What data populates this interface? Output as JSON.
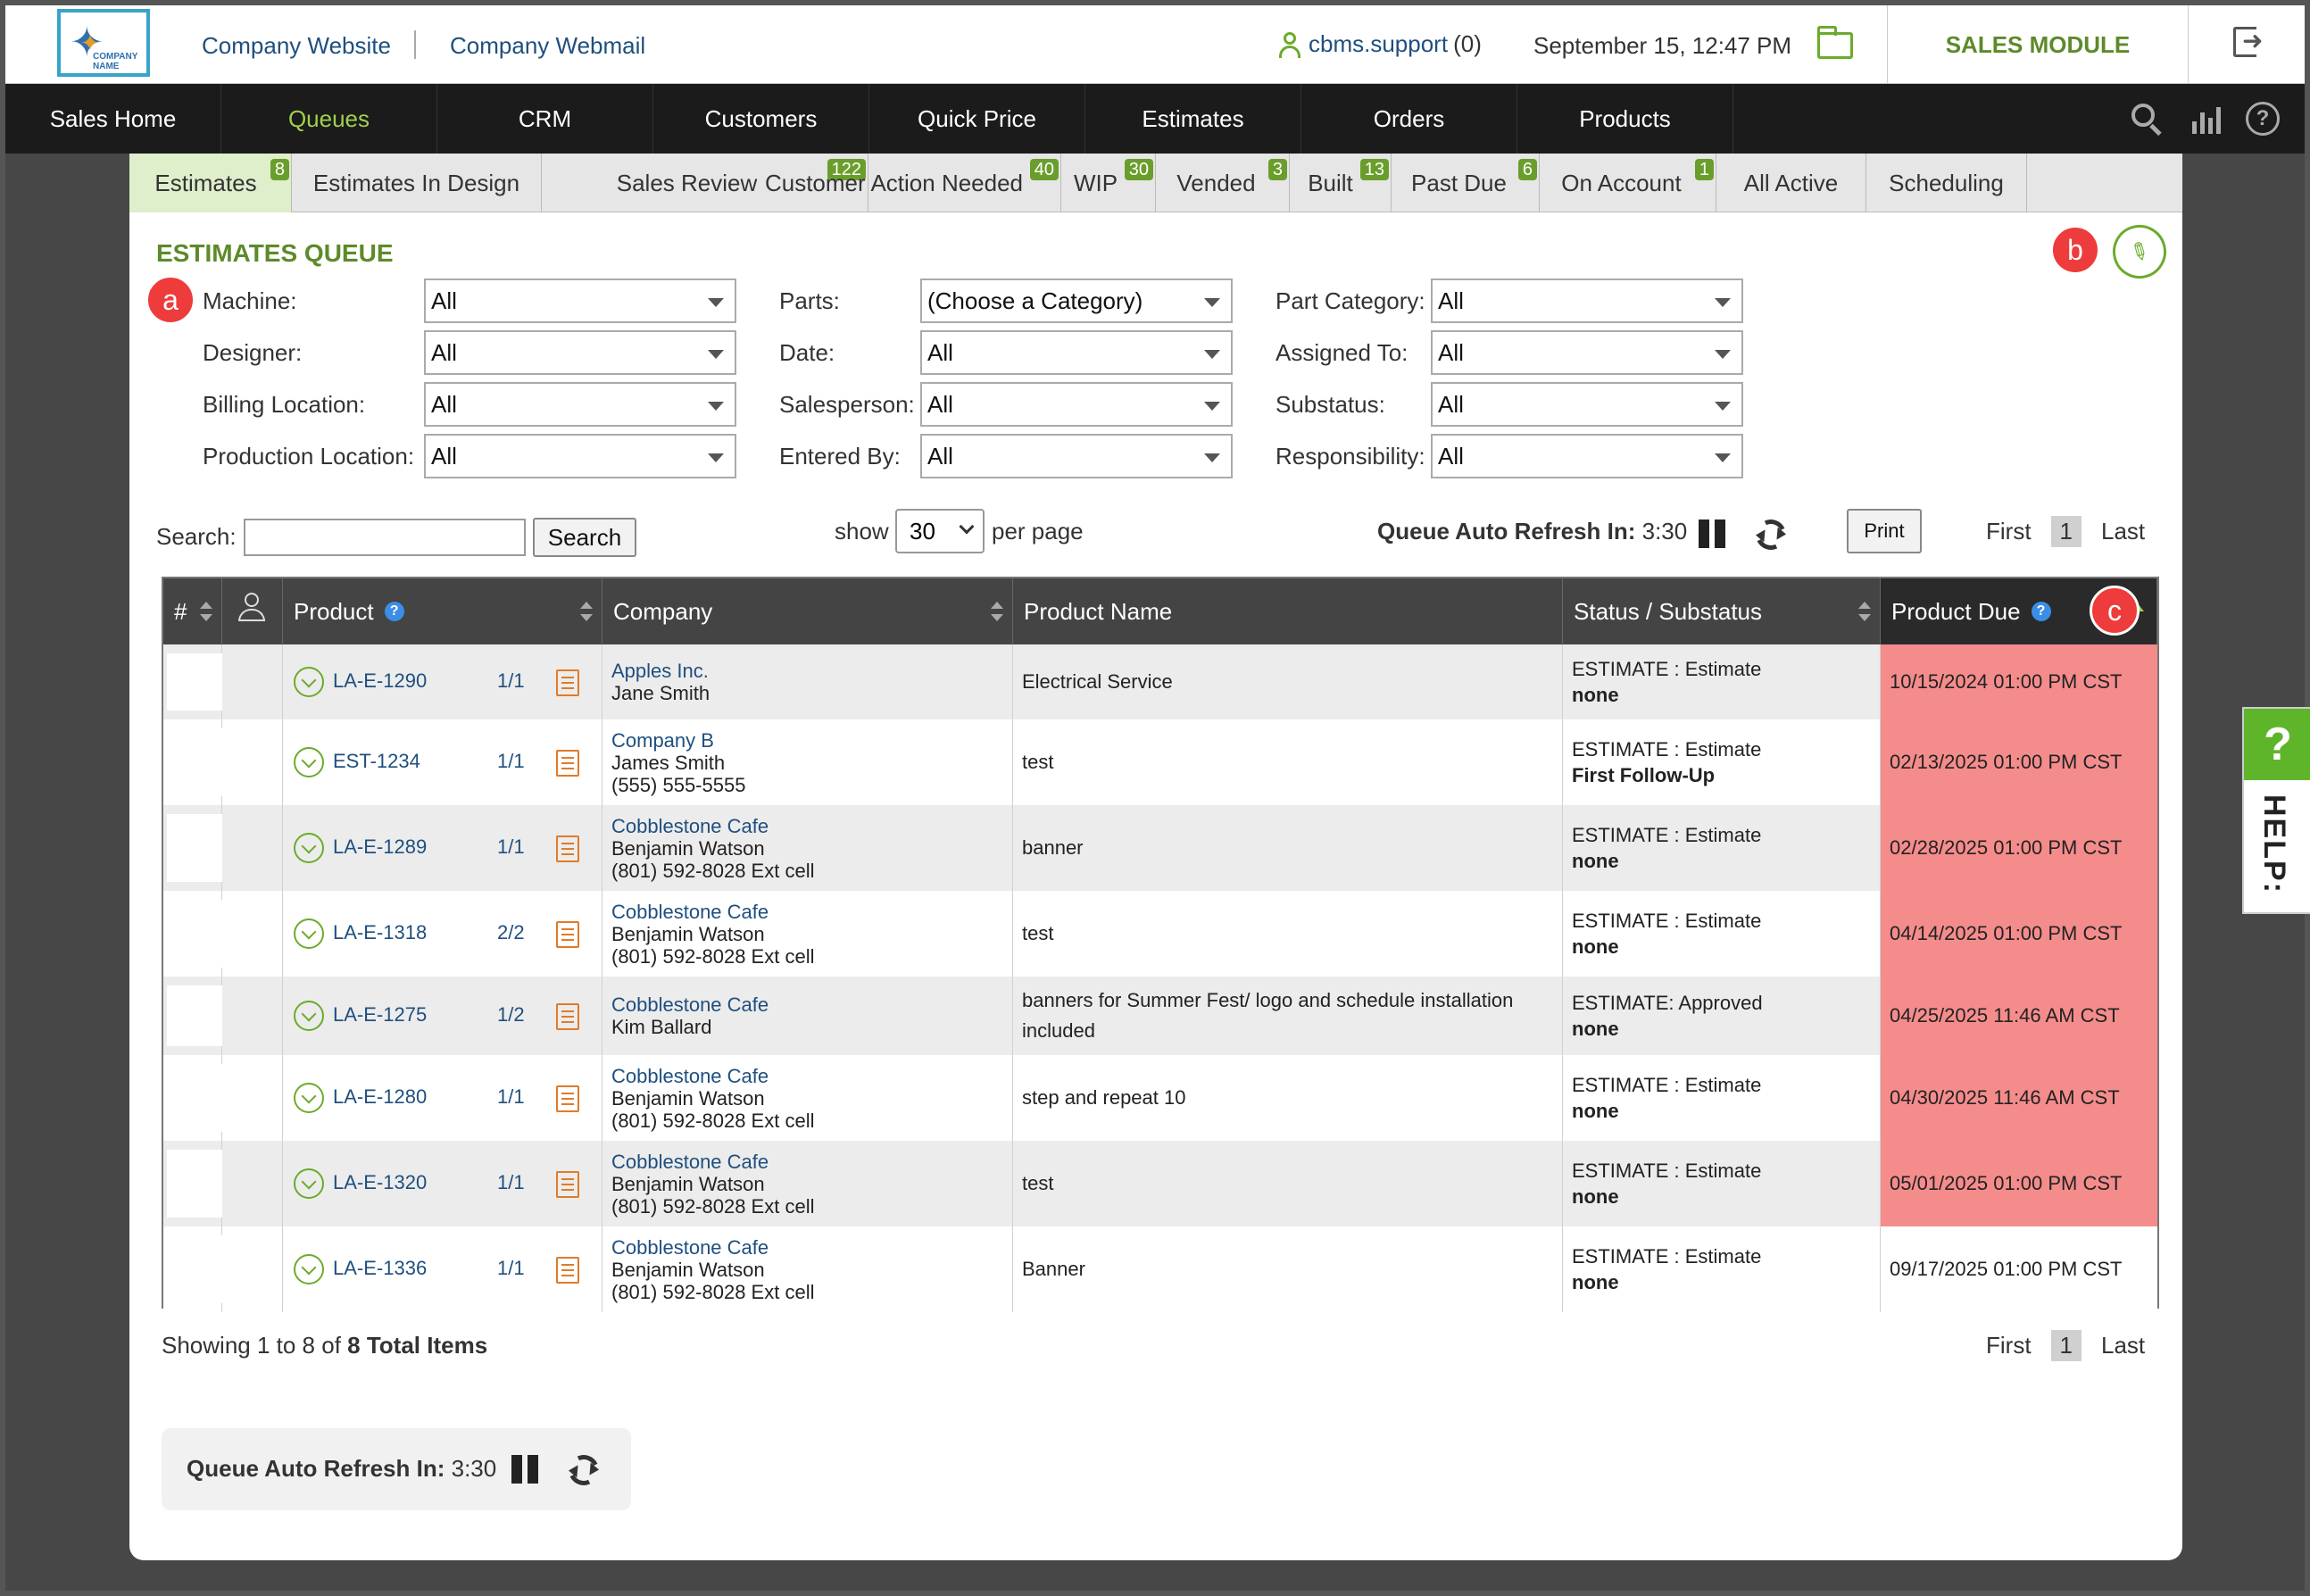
{
  "header": {
    "links": [
      "Company Website",
      "Company Webmail"
    ],
    "logo_text": "COMPANY NAME",
    "user": "cbms.support",
    "user_count": "(0)",
    "datetime": "September 15, 12:47 PM",
    "module": "SALES MODULE"
  },
  "nav": {
    "items": [
      "Sales Home",
      "Queues",
      "CRM",
      "Customers",
      "Quick Price",
      "Estimates",
      "Orders",
      "Products"
    ],
    "active": "Queues",
    "active_color": "#9fd04d"
  },
  "tabs": [
    {
      "label": "Estimates",
      "badge": "8"
    },
    {
      "label": "Estimates In Design",
      "badge": ""
    },
    {
      "label": "Sales Review",
      "badge": "122"
    },
    {
      "label": "Customer Action Needed",
      "badge": "40"
    },
    {
      "label": "WIP",
      "badge": "30"
    },
    {
      "label": "Vended",
      "badge": "3"
    },
    {
      "label": "Built",
      "badge": "13"
    },
    {
      "label": "Past Due",
      "badge": "6"
    },
    {
      "label": "On Account",
      "badge": "1"
    },
    {
      "label": "All Active",
      "badge": ""
    },
    {
      "label": "Scheduling",
      "badge": ""
    }
  ],
  "queue_title": "ESTIMATES QUEUE",
  "markers": {
    "a": "a",
    "b": "b",
    "c": "c"
  },
  "filters": {
    "machine_label": "Machine:",
    "machine_value": "All",
    "designer_label": "Designer:",
    "designer_value": "All",
    "billing_label": "Billing Location:",
    "billing_value": "All",
    "production_label": "Production Location:",
    "production_value": "All",
    "parts_label": "Parts:",
    "parts_value": "(Choose a Category)",
    "date_label": "Date:",
    "date_value": "All",
    "salesperson_label": "Salesperson:",
    "salesperson_value": "All",
    "entered_label": "Entered By:",
    "entered_value": "All",
    "partcat_label": "Part Category:",
    "partcat_value": "All",
    "assigned_label": "Assigned To:",
    "assigned_value": "All",
    "substatus_label": "Substatus:",
    "substatus_value": "All",
    "responsibility_label": "Responsibility:",
    "responsibility_value": "All"
  },
  "search": {
    "label": "Search:",
    "value": "",
    "button": "Search"
  },
  "paging": {
    "show": "show",
    "per_page_value": "30",
    "per_page": "per page",
    "first": "First",
    "current": "1",
    "last": "Last"
  },
  "refresh": {
    "label": "Queue Auto Refresh In:",
    "time": "3:30"
  },
  "print_label": "Print",
  "table": {
    "headers": {
      "num": "#",
      "product": "Product",
      "company": "Company",
      "product_name": "Product Name",
      "status": "Status / Substatus",
      "due": "Product Due"
    },
    "overdue_color": "#f58c8c",
    "rows": [
      {
        "id": "LA-E-1290",
        "frac": "1/1",
        "company": "Apples Inc.",
        "contact": "Jane Smith",
        "phone": "",
        "product_name": "Electrical Service",
        "status": "ESTIMATE : Estimate",
        "substatus": "none",
        "due": "10/15/2024 01:00 PM CST",
        "overdue": true
      },
      {
        "id": "EST-1234",
        "frac": "1/1",
        "company": "Company B",
        "contact": "James Smith",
        "phone": "(555) 555-5555",
        "product_name": "test",
        "status": "ESTIMATE : Estimate",
        "substatus": "First Follow-Up",
        "due": "02/13/2025 01:00 PM CST",
        "overdue": true
      },
      {
        "id": "LA-E-1289",
        "frac": "1/1",
        "company": "Cobblestone Cafe",
        "contact": "Benjamin Watson",
        "phone": "(801) 592-8028 Ext cell",
        "product_name": "banner",
        "status": "ESTIMATE : Estimate",
        "substatus": "none",
        "due": "02/28/2025 01:00 PM CST",
        "overdue": true
      },
      {
        "id": "LA-E-1318",
        "frac": "2/2",
        "company": "Cobblestone Cafe",
        "contact": "Benjamin Watson",
        "phone": "(801) 592-8028 Ext cell",
        "product_name": "test",
        "status": "ESTIMATE : Estimate",
        "substatus": "none",
        "due": "04/14/2025 01:00 PM CST",
        "overdue": true
      },
      {
        "id": "LA-E-1275",
        "frac": "1/2",
        "company": "Cobblestone Cafe",
        "contact": "Kim Ballard",
        "phone": "",
        "product_name": "banners for Summer Fest/ logo and schedule installation included",
        "status": "ESTIMATE: Approved",
        "substatus": "none",
        "due": "04/25/2025 11:46 AM CST",
        "overdue": true
      },
      {
        "id": "LA-E-1280",
        "frac": "1/1",
        "company": "Cobblestone Cafe",
        "contact": "Benjamin Watson",
        "phone": "(801) 592-8028 Ext cell",
        "product_name": "step and repeat 10",
        "status": "ESTIMATE : Estimate",
        "substatus": "none",
        "due": "04/30/2025 11:46 AM CST",
        "overdue": true
      },
      {
        "id": "LA-E-1320",
        "frac": "1/1",
        "company": "Cobblestone Cafe",
        "contact": "Benjamin Watson",
        "phone": "(801) 592-8028 Ext cell",
        "product_name": "test",
        "status": "ESTIMATE : Estimate",
        "substatus": "none",
        "due": "05/01/2025 01:00 PM CST",
        "overdue": true
      },
      {
        "id": "LA-E-1336",
        "frac": "1/1",
        "company": "Cobblestone Cafe",
        "contact": "Benjamin Watson",
        "phone": "(801) 592-8028 Ext cell",
        "product_name": "Banner",
        "status": "ESTIMATE : Estimate",
        "substatus": "none",
        "due": "09/17/2025 01:00 PM CST",
        "overdue": false
      }
    ]
  },
  "showing": {
    "prefix": "Showing 1 to 8 of",
    "total": "8 Total Items"
  },
  "help_tab": {
    "q": "?",
    "label": "HELP:"
  }
}
